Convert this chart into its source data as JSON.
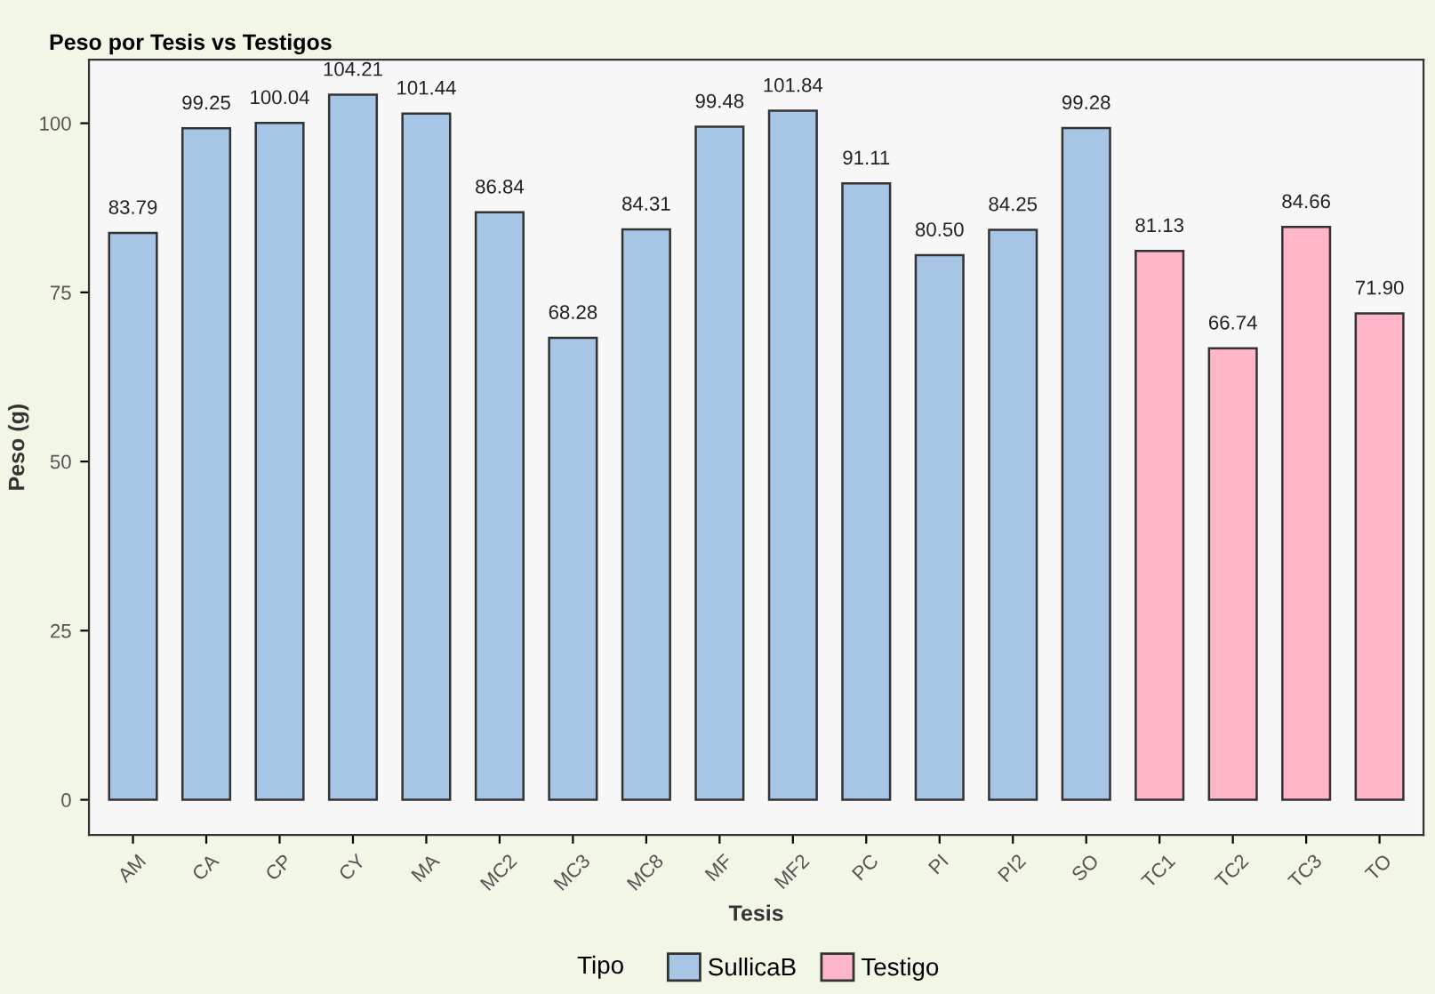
{
  "chart_data": {
    "type": "bar",
    "title": "Peso por Tesis vs Testigos",
    "xlabel": "Tesis",
    "ylabel": "Peso (g)",
    "legend_title": "Tipo",
    "categories": [
      "AM",
      "CA",
      "CP",
      "CY",
      "MA",
      "MC2",
      "MC3",
      "MC8",
      "MF",
      "MF2",
      "PC",
      "PI",
      "PI2",
      "SO",
      "TC1",
      "TC2",
      "TC3",
      "TO"
    ],
    "series": [
      {
        "name": "SullicaB",
        "color": "#a7c6e6",
        "values": [
          83.79,
          99.25,
          100.04,
          104.21,
          101.44,
          86.84,
          68.28,
          84.31,
          99.48,
          101.84,
          91.11,
          80.5,
          84.25,
          99.28,
          null,
          null,
          null,
          null
        ],
        "value_labels": [
          "83.79",
          "99.25",
          "100.04",
          "104.21",
          "101.44",
          "86.84",
          "68.28",
          "84.31",
          "99.48",
          "101.84",
          "91.11",
          "80.50",
          "84.25",
          "99.28",
          null,
          null,
          null,
          null
        ]
      },
      {
        "name": "Testigo",
        "color": "#ffb6c8",
        "values": [
          null,
          null,
          null,
          null,
          null,
          null,
          null,
          null,
          null,
          null,
          null,
          null,
          null,
          null,
          81.13,
          66.74,
          84.66,
          71.9
        ],
        "value_labels": [
          null,
          null,
          null,
          null,
          null,
          null,
          null,
          null,
          null,
          null,
          null,
          null,
          null,
          null,
          "81.13",
          "66.74",
          "84.66",
          "71.90"
        ]
      }
    ],
    "ylim": [
      -5.2,
      109.4
    ],
    "yticks": [
      0,
      25,
      50,
      75,
      100
    ],
    "grid": false,
    "legend": "bottom"
  }
}
